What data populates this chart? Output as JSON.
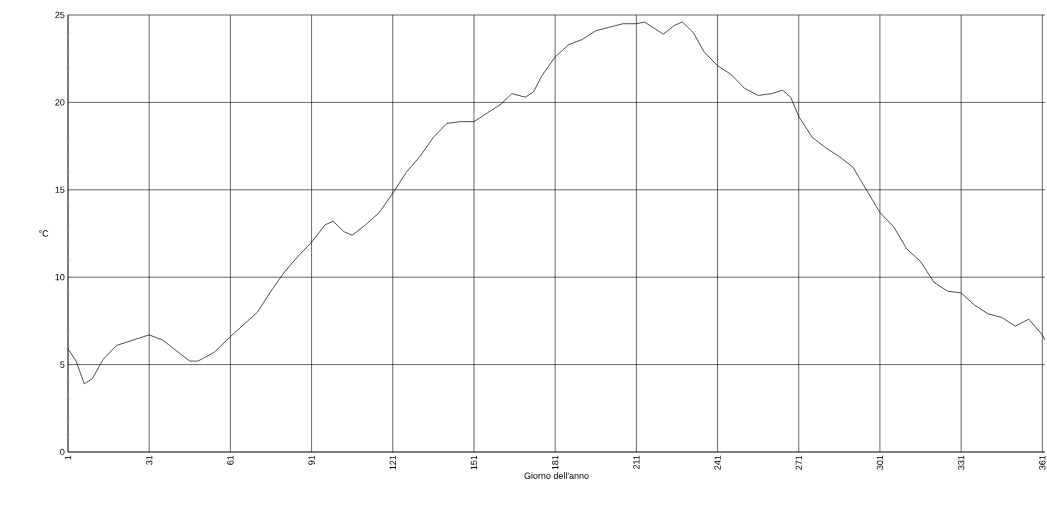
{
  "chart_data": {
    "type": "line",
    "xlabel": "Giorno dell'anno",
    "ylabel": "°C",
    "x": [
      1,
      4,
      7,
      10,
      14,
      19,
      25,
      31,
      36,
      41,
      46,
      49,
      55,
      61,
      66,
      71,
      76,
      81,
      86,
      91,
      96,
      99,
      103,
      106,
      111,
      116,
      121,
      126,
      131,
      136,
      141,
      146,
      151,
      156,
      161,
      165,
      170,
      173,
      176,
      181,
      186,
      191,
      196,
      201,
      206,
      211,
      214,
      218,
      221,
      225,
      228,
      232,
      236,
      241,
      246,
      251,
      256,
      261,
      265,
      268,
      271,
      276,
      281,
      286,
      291,
      296,
      301,
      306,
      311,
      316,
      321,
      326,
      331,
      336,
      341,
      346,
      351,
      356,
      361,
      362
    ],
    "values": [
      5.9,
      5.2,
      3.9,
      4.2,
      5.3,
      6.1,
      6.4,
      6.7,
      6.4,
      5.8,
      5.2,
      5.2,
      5.7,
      6.6,
      7.3,
      8.0,
      9.2,
      10.3,
      11.2,
      12.0,
      13.0,
      13.2,
      12.6,
      12.4,
      13.0,
      13.7,
      14.8,
      16.0,
      16.9,
      18.0,
      18.8,
      18.9,
      18.9,
      19.4,
      19.9,
      20.5,
      20.3,
      20.6,
      21.5,
      22.6,
      23.3,
      23.6,
      24.1,
      24.3,
      24.5,
      24.5,
      24.6,
      24.2,
      23.9,
      24.4,
      24.6,
      24.0,
      22.9,
      22.1,
      21.6,
      20.8,
      20.4,
      20.5,
      20.7,
      20.3,
      19.2,
      18.0,
      17.4,
      16.9,
      16.3,
      15.0,
      13.7,
      12.9,
      11.6,
      10.9,
      9.7,
      9.2,
      9.1,
      8.4,
      7.9,
      7.7,
      7.2,
      7.6,
      6.7,
      6.4
    ],
    "color": "#000000",
    "xlim": [
      1,
      362
    ],
    "ylim": [
      0,
      25
    ],
    "xticks": [
      1,
      31,
      61,
      91,
      121,
      151,
      181,
      211,
      241,
      271,
      301,
      331,
      361
    ],
    "yticks": [
      0,
      5,
      10,
      15,
      20,
      25
    ],
    "grid": true,
    "marker": "none",
    "line_style": "solid"
  }
}
